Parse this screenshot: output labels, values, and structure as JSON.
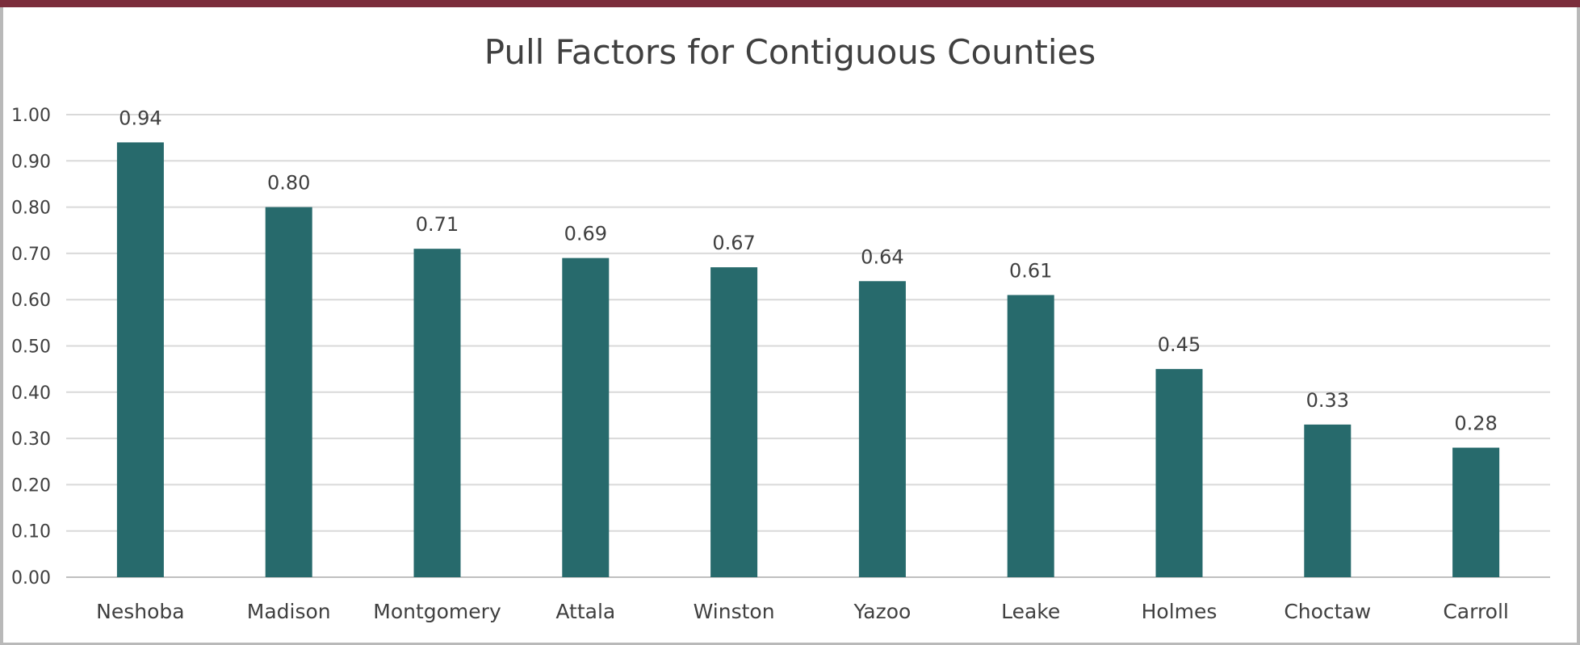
{
  "chart_data": {
    "type": "bar",
    "title": "Pull Factors for Contiguous Counties",
    "xlabel": "",
    "ylabel": "",
    "categories": [
      "Neshoba",
      "Madison",
      "Montgomery",
      "Attala",
      "Winston",
      "Yazoo",
      "Leake",
      "Holmes",
      "Choctaw",
      "Carroll"
    ],
    "values": [
      0.94,
      0.8,
      0.71,
      0.69,
      0.67,
      0.64,
      0.61,
      0.45,
      0.33,
      0.28
    ],
    "data_labels": [
      "0.94",
      "0.80",
      "0.71",
      "0.69",
      "0.67",
      "0.64",
      "0.61",
      "0.45",
      "0.33",
      "0.28"
    ],
    "ylim": [
      0,
      1.0
    ],
    "yticks": [
      "0.00",
      "0.10",
      "0.20",
      "0.30",
      "0.40",
      "0.50",
      "0.60",
      "0.70",
      "0.80",
      "0.90",
      "1.00"
    ],
    "grid": true,
    "legend": "none",
    "bar_color": "#276a6c",
    "frame_accent": "#7b2d3b"
  }
}
